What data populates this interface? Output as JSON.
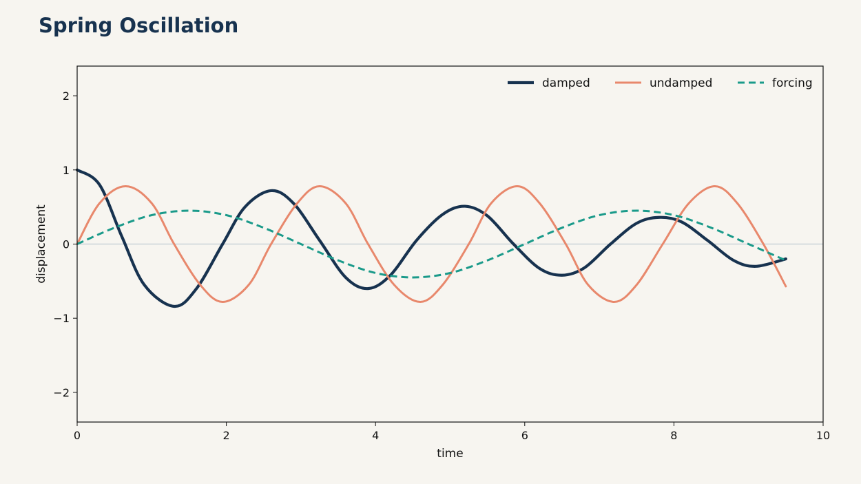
{
  "chart_data": {
    "type": "line",
    "title": "Spring Oscillation",
    "xlabel": "time",
    "ylabel": "displacement",
    "xlim": [
      0,
      10
    ],
    "ylim": [
      -2.4,
      2.4
    ],
    "xticks": [
      0,
      2,
      4,
      6,
      8,
      10
    ],
    "yticks": [
      -2,
      -1,
      0,
      1,
      2
    ],
    "ytick_labels": [
      "−2",
      "−1",
      "0",
      "1",
      "2"
    ],
    "grid": false,
    "zero_line": true,
    "legend": "top-right",
    "series": [
      {
        "name": "damped",
        "color": "#17324f",
        "style": "solid",
        "x": [
          0,
          0.3,
          0.6,
          0.9,
          1.3,
          1.6,
          1.95,
          2.25,
          2.6,
          2.9,
          3.25,
          3.6,
          3.9,
          4.2,
          4.55,
          4.9,
          5.2,
          5.5,
          5.85,
          6.2,
          6.5,
          6.8,
          7.15,
          7.5,
          7.8,
          8.1,
          8.45,
          8.8,
          9.1,
          9.5
        ],
        "values": [
          1.0,
          0.8,
          0.1,
          -0.55,
          -0.84,
          -0.6,
          0.0,
          0.5,
          0.72,
          0.55,
          0.05,
          -0.45,
          -0.6,
          -0.42,
          0.05,
          0.4,
          0.51,
          0.38,
          0.0,
          -0.33,
          -0.42,
          -0.32,
          0.0,
          0.28,
          0.36,
          0.3,
          0.05,
          -0.22,
          -0.3,
          -0.2
        ]
      },
      {
        "name": "undamped",
        "color": "#e8886c",
        "style": "solid",
        "x": [
          0,
          0.3,
          0.65,
          1.0,
          1.3,
          1.65,
          1.95,
          2.3,
          2.6,
          2.95,
          3.25,
          3.6,
          3.9,
          4.25,
          4.6,
          4.9,
          5.25,
          5.55,
          5.9,
          6.2,
          6.55,
          6.85,
          7.2,
          7.5,
          7.85,
          8.2,
          8.55,
          8.85,
          9.2,
          9.5
        ],
        "values": [
          0.0,
          0.55,
          0.78,
          0.55,
          0.0,
          -0.55,
          -0.78,
          -0.55,
          0.0,
          0.55,
          0.78,
          0.55,
          0.0,
          -0.55,
          -0.78,
          -0.55,
          0.0,
          0.55,
          0.78,
          0.55,
          0.0,
          -0.55,
          -0.78,
          -0.55,
          0.0,
          0.55,
          0.78,
          0.55,
          0.0,
          -0.57
        ]
      },
      {
        "name": "forcing",
        "color": "#1a9a8a",
        "style": "dashed",
        "x": [
          0,
          0.5,
          1.0,
          1.5,
          2.0,
          2.5,
          3.0,
          3.5,
          4.0,
          4.5,
          5.0,
          5.5,
          6.0,
          6.5,
          7.0,
          7.5,
          8.0,
          8.5,
          9.0,
          9.5
        ],
        "values": [
          0.0,
          0.22,
          0.39,
          0.45,
          0.39,
          0.22,
          0.0,
          -0.22,
          -0.39,
          -0.45,
          -0.39,
          -0.22,
          0.0,
          0.22,
          0.39,
          0.45,
          0.39,
          0.22,
          0.0,
          -0.22
        ]
      }
    ]
  }
}
